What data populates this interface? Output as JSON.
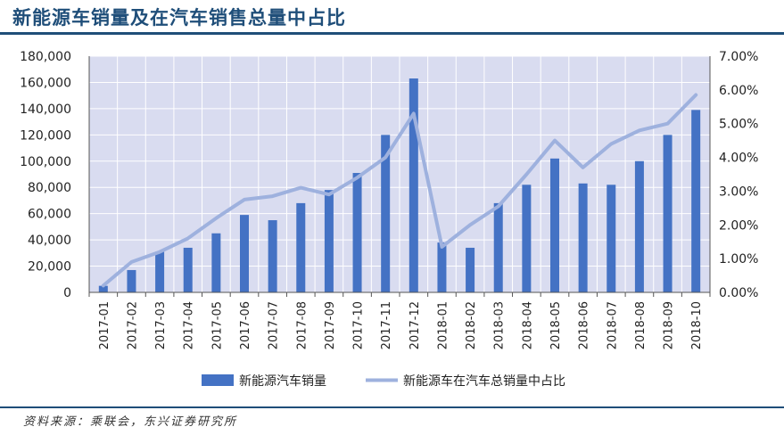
{
  "header": {
    "title": "新能源车销量及在汽车销售总量中占比"
  },
  "footer": {
    "source": "资料来源：乘联会，东兴证券研究所"
  },
  "chart_data": {
    "type": "bar+line",
    "categories": [
      "2017-01",
      "2017-02",
      "2017-03",
      "2017-04",
      "2017-05",
      "2017-06",
      "2017-07",
      "2017-08",
      "2017-09",
      "2017-10",
      "2017-11",
      "2017-12",
      "2018-01",
      "2018-02",
      "2018-03",
      "2018-04",
      "2018-05",
      "2018-06",
      "2018-07",
      "2018-08",
      "2018-09",
      "2018-10"
    ],
    "series": [
      {
        "name": "新能源汽车销量",
        "type": "bar",
        "axis": "left",
        "color": "#4472c4",
        "values": [
          5000,
          17000,
          31000,
          34000,
          45000,
          59000,
          55000,
          68000,
          78000,
          91000,
          120000,
          163000,
          38000,
          34000,
          68000,
          82000,
          102000,
          83000,
          82000,
          100000,
          120000,
          139000
        ]
      },
      {
        "name": "新能源车在汽车总销量中占比",
        "type": "line",
        "axis": "right",
        "color": "#9eb1de",
        "values": [
          0.2,
          0.9,
          1.2,
          1.6,
          2.2,
          2.75,
          2.85,
          3.1,
          2.9,
          3.4,
          4.0,
          5.3,
          1.35,
          2.0,
          2.55,
          3.5,
          4.5,
          3.7,
          4.4,
          4.8,
          5.0,
          5.85
        ]
      }
    ],
    "y_left": {
      "min": 0,
      "max": 180000,
      "ticks": [
        "0",
        "20,000",
        "40,000",
        "60,000",
        "80,000",
        "100,000",
        "120,000",
        "140,000",
        "160,000",
        "180,000"
      ]
    },
    "y_right": {
      "min": 0,
      "max": 7,
      "ticks": [
        "0.00%",
        "1.00%",
        "2.00%",
        "3.00%",
        "4.00%",
        "5.00%",
        "6.00%",
        "7.00%"
      ]
    },
    "grid": true,
    "plot_background": "#d9dcf0",
    "legend_position": "bottom"
  }
}
